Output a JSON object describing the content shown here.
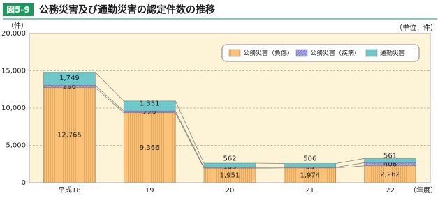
{
  "chart_data": {
    "type": "stacked_bar",
    "badge": "図5-9",
    "title": "公務災害及び通勤災害の認定件数の推移",
    "y_axis_label": "（件）",
    "unit_note": "（単位：件）",
    "x_axis_label": "（年度）",
    "categories": [
      "平成18",
      "19",
      "20",
      "21",
      "22"
    ],
    "series": [
      {
        "name": "公務災害（負傷）",
        "color": "#f8c47c",
        "values": [
          12765,
          9366,
          1951,
          1974,
          2262
        ],
        "value_labels": [
          "12,765",
          "9,366",
          "1,951",
          "1,974",
          "2,262"
        ]
      },
      {
        "name": "公務災害（疾病）",
        "color": "#a9a3e0",
        "values": [
          296,
          229,
          103,
          93,
          406
        ]
      },
      {
        "name": "通勤災害",
        "color": "#6fc8c9",
        "values": [
          1749,
          1351,
          562,
          506,
          561
        ],
        "value_labels": [
          "1,749",
          "1,351",
          "562",
          "506",
          "561"
        ]
      }
    ],
    "ylim": [
      0,
      20000
    ],
    "yticks": [
      0,
      {
        "value": 5000,
        "label": "5,000"
      },
      {
        "value": 10000,
        "label": "10,000"
      },
      {
        "value": 15000,
        "label": "15,000"
      },
      {
        "value": 20000,
        "label": "20,000"
      }
    ],
    "grid": true,
    "legend": "upper right"
  }
}
